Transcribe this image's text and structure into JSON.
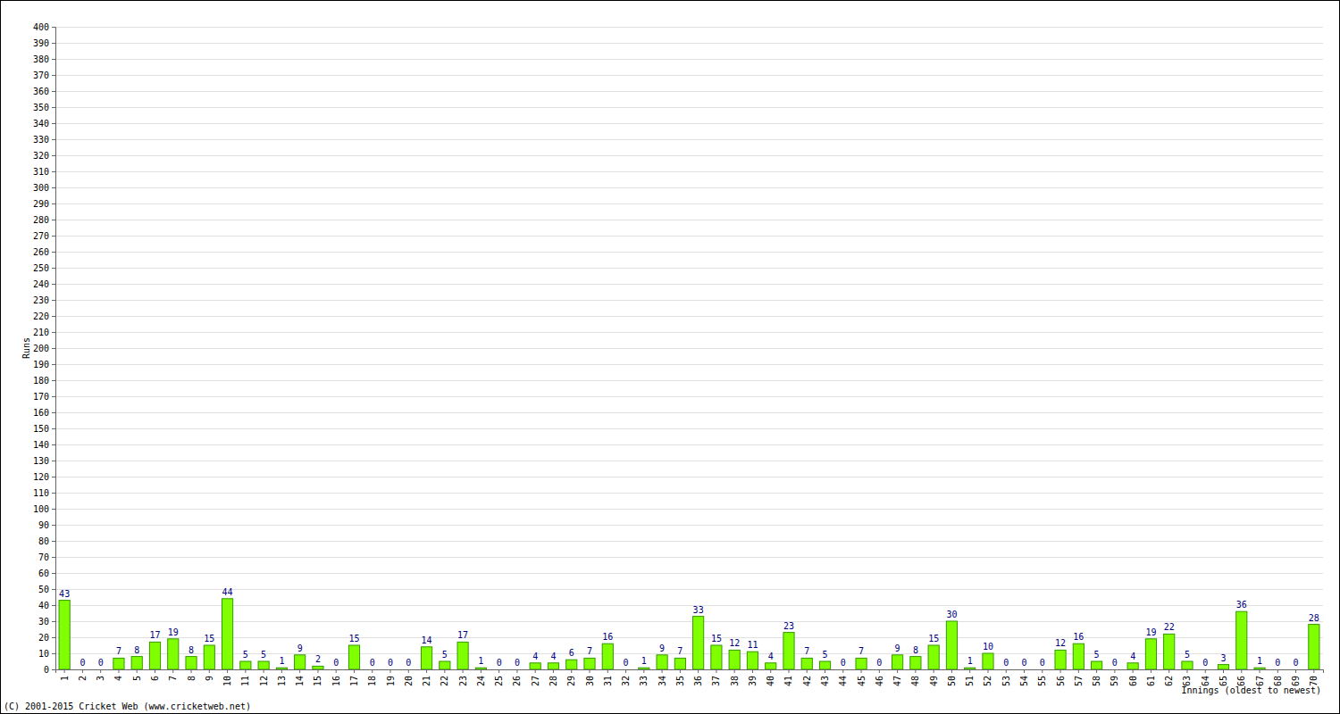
{
  "chart_data": {
    "type": "bar",
    "x_label": "Innings (oldest to newest)",
    "y_label": "Runs",
    "annotations": [
      "(C) 2001-2015 Cricket Web (www.cricketweb.net)"
    ],
    "categories": [
      "1",
      "2",
      "3",
      "4",
      "5",
      "6",
      "7",
      "8",
      "9",
      "10",
      "11",
      "12",
      "13",
      "14",
      "15",
      "16",
      "17",
      "18",
      "19",
      "20",
      "21",
      "22",
      "23",
      "24",
      "25",
      "26",
      "27",
      "28",
      "29",
      "30",
      "31",
      "32",
      "33",
      "34",
      "35",
      "36",
      "37",
      "38",
      "39",
      "40",
      "41",
      "42",
      "43",
      "44",
      "45",
      "46",
      "47",
      "48",
      "49",
      "50",
      "51",
      "52",
      "53",
      "54",
      "55",
      "56",
      "57",
      "58",
      "59",
      "60",
      "61",
      "62",
      "63",
      "64",
      "65",
      "66",
      "67",
      "68",
      "69",
      "70"
    ],
    "values": [
      43,
      0,
      0,
      7,
      8,
      17,
      19,
      8,
      15,
      44,
      5,
      5,
      1,
      9,
      2,
      0,
      15,
      0,
      0,
      0,
      14,
      5,
      17,
      1,
      0,
      0,
      4,
      4,
      6,
      7,
      16,
      0,
      1,
      9,
      7,
      33,
      15,
      12,
      11,
      4,
      23,
      7,
      5,
      0,
      7,
      0,
      9,
      8,
      15,
      30,
      1,
      10,
      0,
      0,
      0,
      12,
      16,
      5,
      0,
      4,
      19,
      22,
      5,
      0,
      3,
      36,
      1,
      0,
      0,
      28
    ],
    "color": "#80ff00",
    "ylim": [
      0,
      400
    ],
    "yticks": [
      0,
      10,
      20,
      30,
      40,
      50,
      60,
      70,
      80,
      90,
      100,
      110,
      120,
      130,
      140,
      150,
      160,
      170,
      180,
      190,
      200,
      210,
      220,
      230,
      240,
      250,
      260,
      270,
      280,
      290,
      300,
      310,
      320,
      330,
      340,
      350,
      360,
      370,
      380,
      390,
      400
    ],
    "grid": true,
    "data_labels": true
  }
}
